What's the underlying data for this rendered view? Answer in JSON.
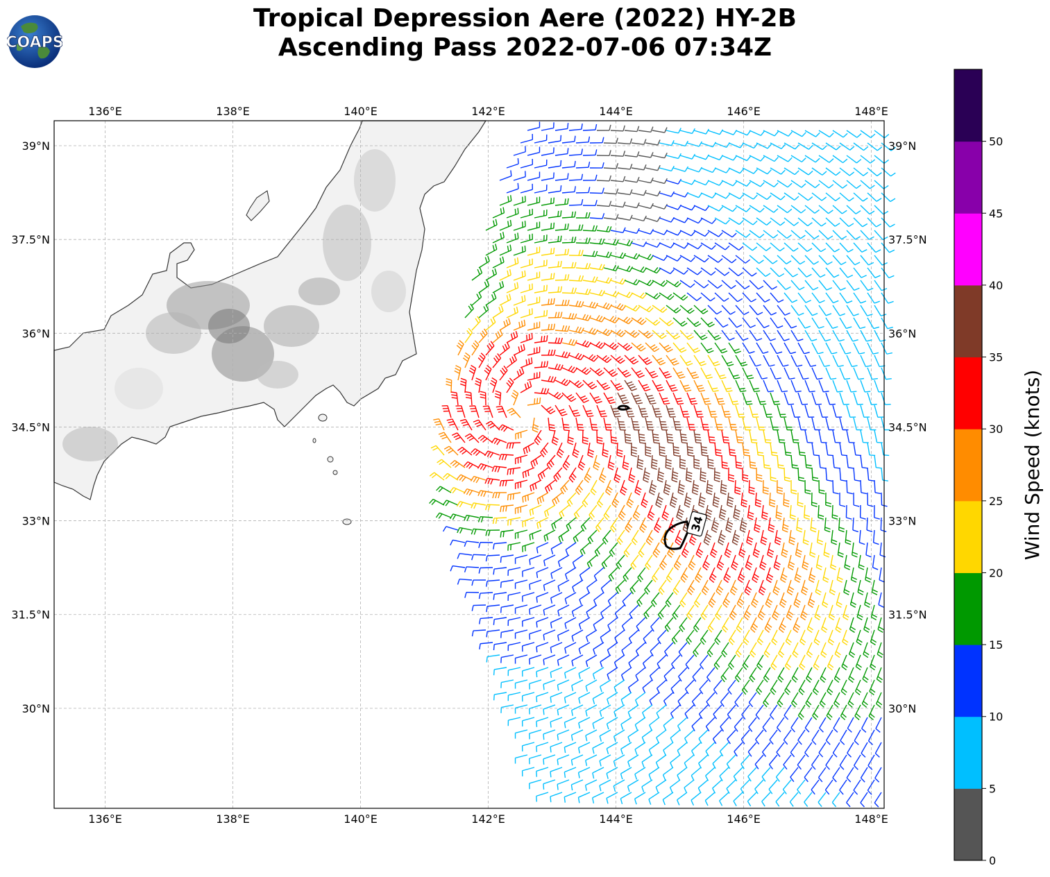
{
  "logo": {
    "text": "COAPS"
  },
  "title": {
    "line1": "Tropical Depression Aere (2022) HY-2B",
    "line2": "Ascending Pass 2022-07-06 07:34Z"
  },
  "map": {
    "lon_range": [
      135.2,
      148.2
    ],
    "lat_range": [
      28.4,
      39.4
    ],
    "lon_ticks": [
      136,
      138,
      140,
      142,
      144,
      146,
      148
    ],
    "lon_tick_labels": [
      "136°E",
      "138°E",
      "140°E",
      "142°E",
      "144°E",
      "146°E",
      "148°E"
    ],
    "lat_ticks": [
      39,
      37.5,
      36,
      34.5,
      33,
      31.5,
      30
    ],
    "lat_tick_labels": [
      "39°N",
      "37.5°N",
      "36°N",
      "34.5°N",
      "33°N",
      "31.5°N",
      "30°N"
    ],
    "storm_center": {
      "lon": 142.6,
      "lat": 34.7
    },
    "contour_label": "34"
  },
  "colorbar": {
    "label": "Wind Speed (knots)",
    "tick_labels": [
      "0",
      "5",
      "10",
      "15",
      "20",
      "25",
      "30",
      "35",
      "40",
      "45",
      "50"
    ],
    "colors": [
      "#555555",
      "#00bfff",
      "#0033ff",
      "#009900",
      "#ffd700",
      "#ff8c00",
      "#ff0000",
      "#7f3a28",
      "#ff00ff",
      "#8800aa",
      "#2a0055"
    ]
  }
}
